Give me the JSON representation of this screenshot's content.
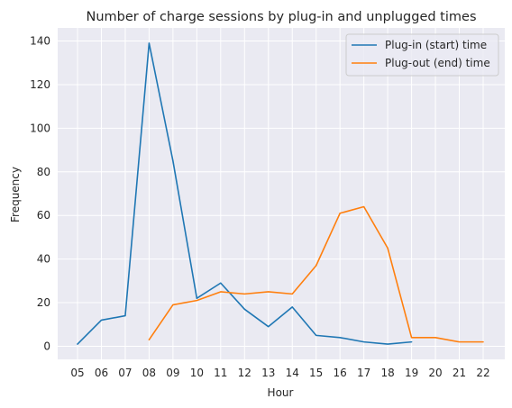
{
  "chart_data": {
    "type": "line",
    "title": "Number of charge sessions by plug-in and unplugged times",
    "xlabel": "Hour",
    "ylabel": "Frequency",
    "categories": [
      "05",
      "06",
      "07",
      "08",
      "09",
      "10",
      "11",
      "12",
      "13",
      "14",
      "15",
      "16",
      "17",
      "18",
      "19",
      "20",
      "21",
      "22"
    ],
    "ylim": [
      -6,
      146
    ],
    "yticks": [
      0,
      20,
      40,
      60,
      80,
      100,
      120,
      140
    ],
    "grid": true,
    "legend_position": "top-right",
    "series": [
      {
        "name": "Plug-in (start) time",
        "color": "#1f77b4",
        "values": [
          1,
          12,
          14,
          139,
          85,
          22,
          29,
          17,
          9,
          18,
          5,
          4,
          2,
          1,
          2,
          null,
          null,
          null
        ]
      },
      {
        "name": "Plug-out (end) time",
        "color": "#ff7f0e",
        "values": [
          null,
          null,
          null,
          3,
          19,
          21,
          25,
          24,
          25,
          24,
          37,
          61,
          64,
          45,
          4,
          4,
          2,
          2
        ]
      }
    ]
  }
}
